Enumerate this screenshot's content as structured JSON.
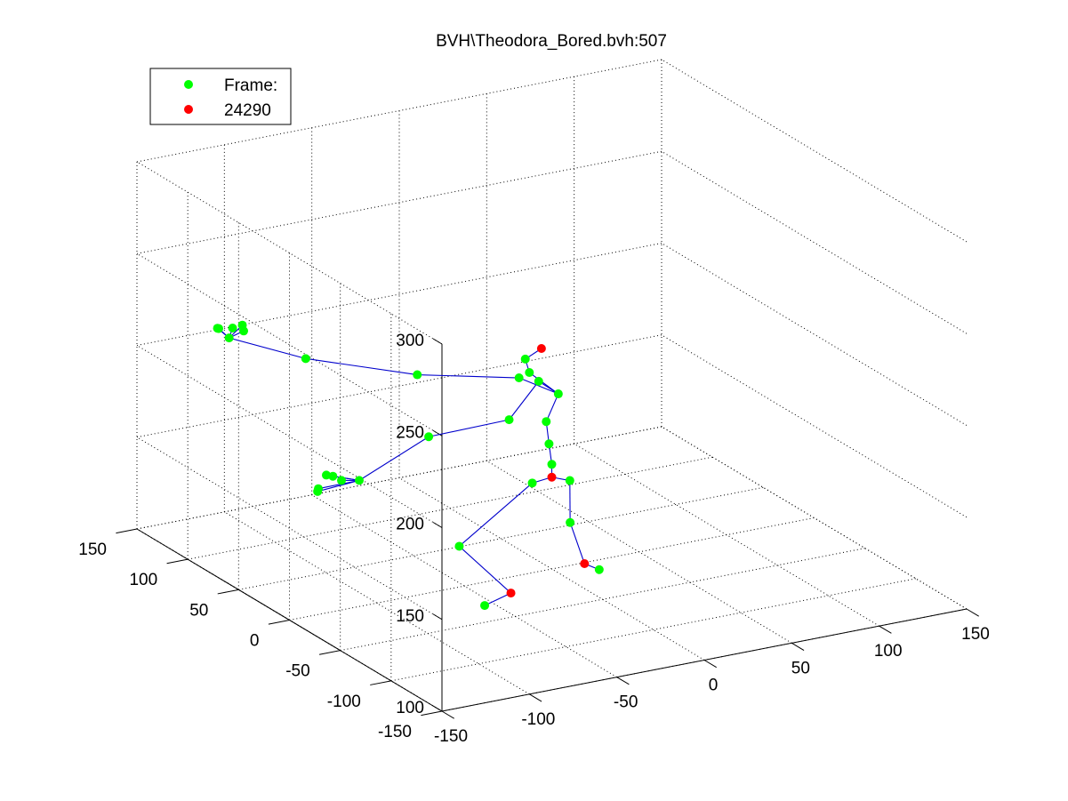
{
  "chart_data": {
    "type": "scatter",
    "title": "BVH\\Theodora_Bored.bvh:507",
    "legend": {
      "placement": "top-left",
      "entries": [
        {
          "label": "Frame:",
          "color": "#00ff00"
        },
        {
          "label": "24290",
          "color": "#ff0000"
        }
      ]
    },
    "grid": true,
    "x_axis": {
      "ticks": [
        "-150",
        "-100",
        "-50",
        "0",
        "50",
        "100",
        "150"
      ],
      "range": [
        -150,
        150
      ]
    },
    "y_axis": {
      "ticks": [
        "-150",
        "-100",
        "-50",
        "0",
        "50",
        "100",
        "150"
      ],
      "range": [
        -150,
        150
      ]
    },
    "z_axis": {
      "ticks": [
        "100",
        "150",
        "200",
        "250",
        "300"
      ],
      "range": [
        100,
        300
      ]
    },
    "joint_color": "#00ff00",
    "marked_color": "#ff0000",
    "bone_color": "#0000cc",
    "joints": [
      {
        "id": "hips",
        "x": 0,
        "y": 0,
        "z": 150,
        "marked": true
      },
      {
        "id": "spine",
        "x": 0,
        "y": 0,
        "z": 157,
        "marked": false
      },
      {
        "id": "spine1",
        "x": -1,
        "y": 1,
        "z": 168,
        "marked": false
      },
      {
        "id": "spine2",
        "x": -2,
        "y": 2,
        "z": 180,
        "marked": false
      },
      {
        "id": "spine3",
        "x": 2,
        "y": -3,
        "z": 196,
        "marked": false
      },
      {
        "id": "neck",
        "x": -7,
        "y": 10,
        "z": 205,
        "marked": false
      },
      {
        "id": "head",
        "x": -7,
        "y": 14,
        "z": 211,
        "marked": false
      },
      {
        "id": "head_end",
        "x": -3,
        "y": 5,
        "z": 219,
        "marked": true
      },
      {
        "id": "r_shoulder",
        "x": -10,
        "y": 15,
        "z": 201,
        "marked": false
      },
      {
        "id": "r_arm",
        "x": -49,
        "y": 48,
        "z": 199,
        "marked": false
      },
      {
        "id": "r_forearm",
        "x": -100,
        "y": 70,
        "z": 210,
        "marked": false
      },
      {
        "id": "r_hand",
        "x": -138,
        "y": 80,
        "z": 225,
        "marked": false
      },
      {
        "id": "r_f1",
        "x": -140,
        "y": 88,
        "z": 228,
        "marked": false
      },
      {
        "id": "r_f2",
        "x": -141,
        "y": 85,
        "z": 229,
        "marked": false
      },
      {
        "id": "r_f3",
        "x": -136,
        "y": 80,
        "z": 230,
        "marked": false
      },
      {
        "id": "r_f4",
        "x": -131,
        "y": 79,
        "z": 231,
        "marked": false
      },
      {
        "id": "r_f5",
        "x": -132,
        "y": 76,
        "z": 229,
        "marked": false
      },
      {
        "id": "l_shoulder",
        "x": -4,
        "y": 6,
        "z": 201,
        "marked": false
      },
      {
        "id": "l_arm",
        "x": -18,
        "y": 11,
        "z": 181,
        "marked": false
      },
      {
        "id": "l_forearm",
        "x": -57,
        "y": 23,
        "z": 175,
        "marked": false
      },
      {
        "id": "l_hand",
        "x": -88,
        "y": 38,
        "z": 152,
        "marked": false
      },
      {
        "id": "l_f1",
        "x": -97,
        "y": 40,
        "z": 153,
        "marked": false
      },
      {
        "id": "l_f2",
        "x": -106,
        "y": 48,
        "z": 146,
        "marked": false
      },
      {
        "id": "l_f3",
        "x": -105,
        "y": 49,
        "z": 147,
        "marked": false
      },
      {
        "id": "l_f4",
        "x": -99,
        "y": 45,
        "z": 154,
        "marked": false
      },
      {
        "id": "l_f5",
        "x": -101,
        "y": 48,
        "z": 154,
        "marked": false
      },
      {
        "id": "r_upleg",
        "x": -10,
        "y": 2,
        "z": 148,
        "marked": false
      },
      {
        "id": "r_leg",
        "x": -50,
        "y": 5,
        "z": 120,
        "marked": false
      },
      {
        "id": "r_foot",
        "x": -35,
        "y": -20,
        "z": 100,
        "marked": true
      },
      {
        "id": "r_toe",
        "x": -50,
        "y": -20,
        "z": 96,
        "marked": false
      },
      {
        "id": "l_upleg",
        "x": 8,
        "y": -4,
        "z": 148,
        "marked": false
      },
      {
        "id": "l_leg",
        "x": 7,
        "y": -6,
        "z": 126,
        "marked": false
      },
      {
        "id": "l_foot",
        "x": 10,
        "y": -15,
        "z": 106,
        "marked": true
      },
      {
        "id": "l_toe",
        "x": 12,
        "y": -26,
        "z": 106,
        "marked": false
      }
    ],
    "bones": [
      [
        "hips",
        "spine"
      ],
      [
        "spine",
        "spine1"
      ],
      [
        "spine1",
        "spine2"
      ],
      [
        "spine2",
        "spine3"
      ],
      [
        "spine3",
        "neck"
      ],
      [
        "neck",
        "head"
      ],
      [
        "head",
        "head_end"
      ],
      [
        "spine3",
        "r_shoulder"
      ],
      [
        "r_shoulder",
        "r_arm"
      ],
      [
        "r_arm",
        "r_forearm"
      ],
      [
        "r_forearm",
        "r_hand"
      ],
      [
        "r_hand",
        "r_f1"
      ],
      [
        "r_hand",
        "r_f2"
      ],
      [
        "r_hand",
        "r_f3"
      ],
      [
        "r_hand",
        "r_f4"
      ],
      [
        "r_hand",
        "r_f5"
      ],
      [
        "spine3",
        "l_shoulder"
      ],
      [
        "l_shoulder",
        "l_arm"
      ],
      [
        "l_arm",
        "l_forearm"
      ],
      [
        "l_forearm",
        "l_hand"
      ],
      [
        "l_hand",
        "l_f1"
      ],
      [
        "l_hand",
        "l_f2"
      ],
      [
        "l_hand",
        "l_f3"
      ],
      [
        "l_hand",
        "l_f4"
      ],
      [
        "l_hand",
        "l_f5"
      ],
      [
        "hips",
        "r_upleg"
      ],
      [
        "r_upleg",
        "r_leg"
      ],
      [
        "r_leg",
        "r_foot"
      ],
      [
        "r_foot",
        "r_toe"
      ],
      [
        "hips",
        "l_upleg"
      ],
      [
        "l_upleg",
        "l_leg"
      ],
      [
        "l_leg",
        "l_foot"
      ],
      [
        "l_foot",
        "l_toe"
      ]
    ]
  }
}
